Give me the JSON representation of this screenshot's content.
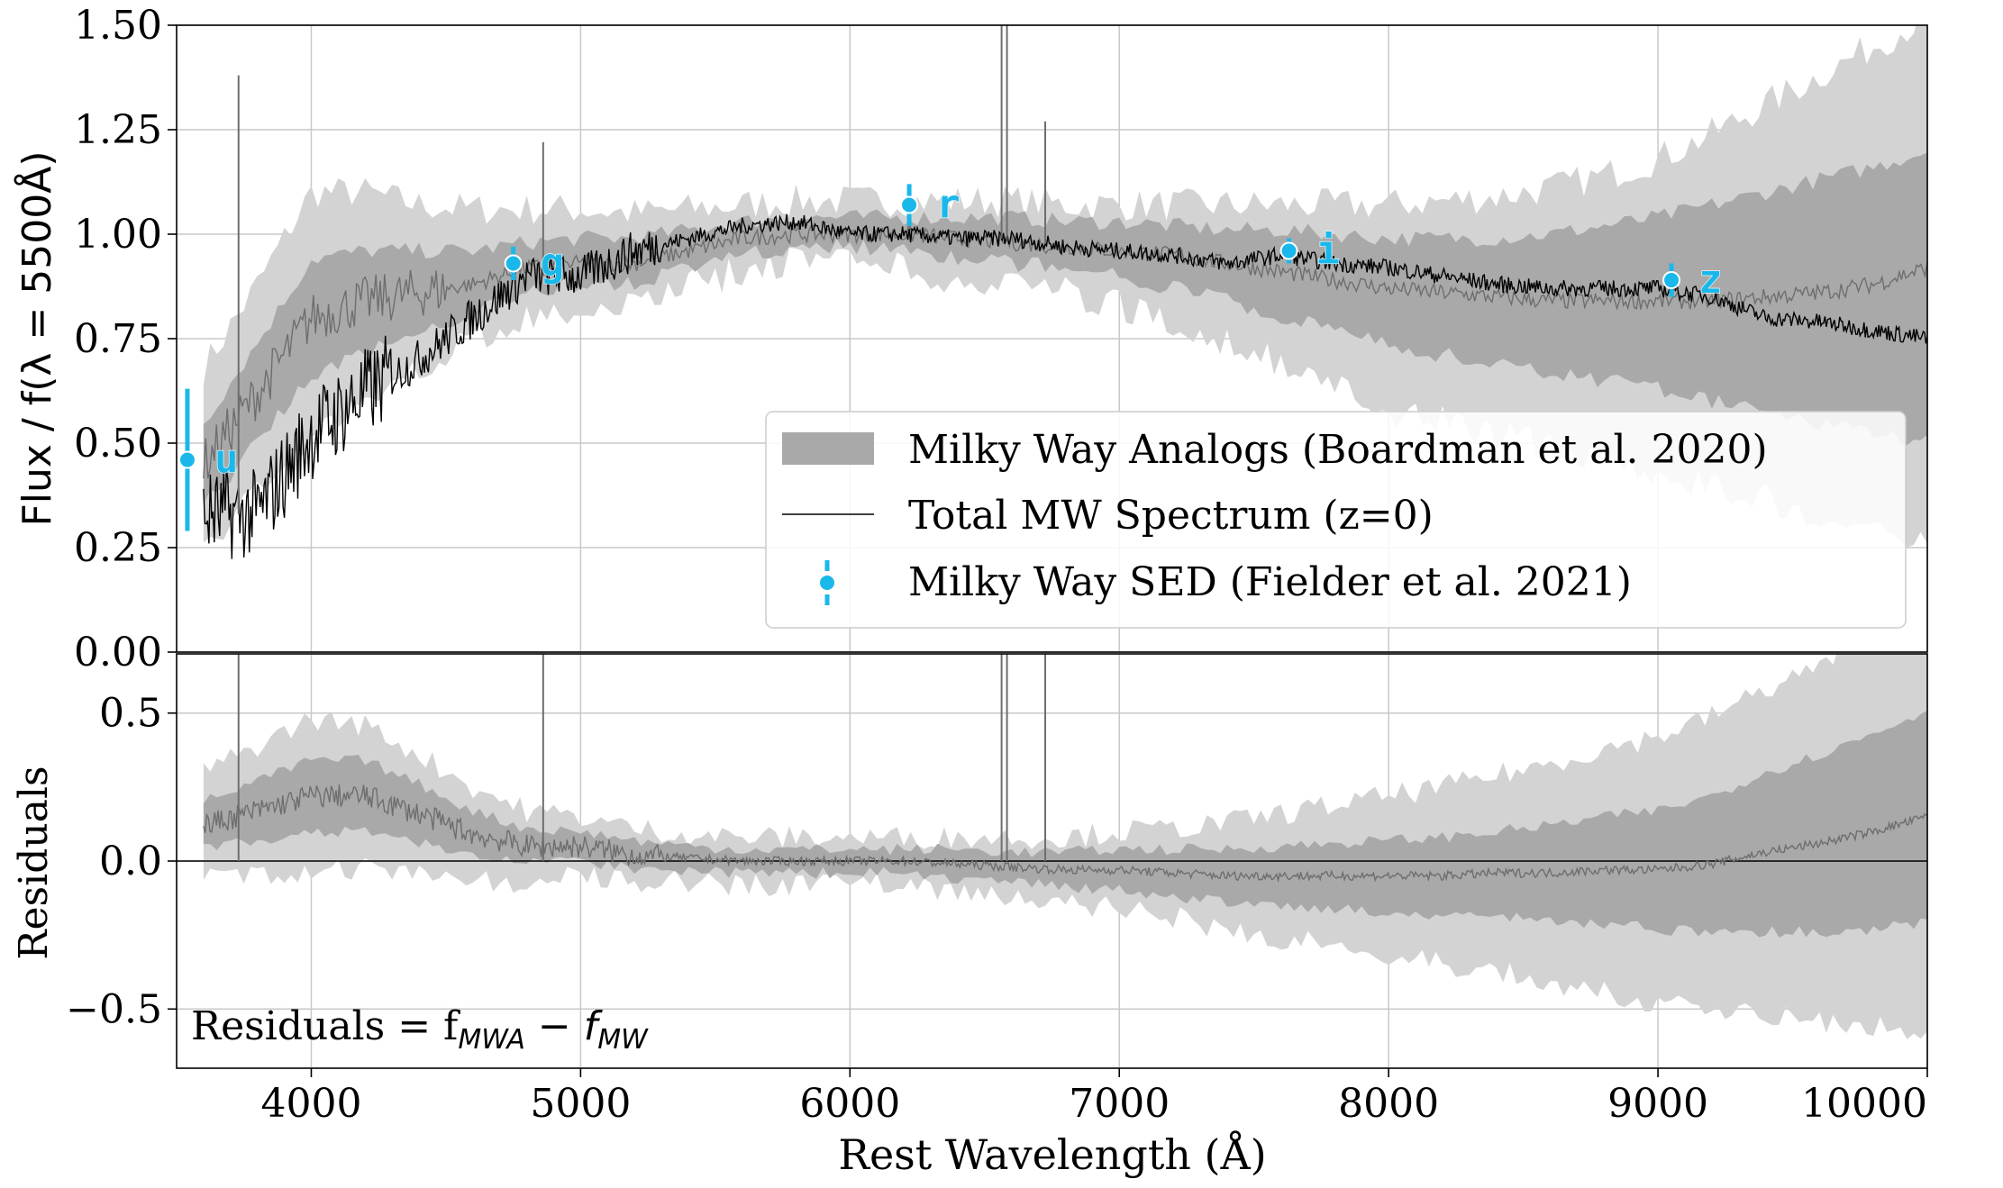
{
  "colors": {
    "sed": "#1ab8ea",
    "band_outer": "#d3d3d3",
    "band_inner": "#a9a9a9",
    "median": "#6e6e6e",
    "mw": "#000000",
    "grid": "#c8c8c8"
  },
  "labels": {
    "top_ylabel": "Flux / f(λ = 5500Å)",
    "bottom_ylabel": "Residuals",
    "xlabel": "Rest Wavelength (Å)",
    "residual_note": "Residuals  = f",
    "residual_note_sub1": "MWA",
    "residual_note_mid": " − f",
    "residual_note_sub2": "MW"
  },
  "legend": {
    "items": [
      {
        "label": "Milky Way Analogs (Boardman et al. 2020)",
        "kind": "patch"
      },
      {
        "label": "Total MW Spectrum (z=0)",
        "kind": "line"
      },
      {
        "label": "Milky Way SED (Fielder et al. 2021)",
        "kind": "errorbar"
      }
    ]
  },
  "chart_data": [
    {
      "type": "line",
      "panel": "top",
      "xlim": [
        3500,
        10000
      ],
      "ylim": [
        0.0,
        1.5
      ],
      "xticks": [
        4000,
        5000,
        6000,
        7000,
        8000,
        9000,
        10000
      ],
      "yticks": [
        "0.00",
        "0.25",
        "0.50",
        "0.75",
        "1.00",
        "1.25",
        "1.50"
      ],
      "ytick_values": [
        0,
        0.25,
        0.5,
        0.75,
        1.0,
        1.25,
        1.5
      ],
      "grid": true,
      "legend_position": "lower-right",
      "analog_band": {
        "x": [
          3600,
          3800,
          4000,
          4200,
          4400,
          4600,
          4800,
          5000,
          5200,
          5400,
          5600,
          5800,
          6000,
          6200,
          6400,
          6600,
          6800,
          7000,
          7200,
          7400,
          7600,
          7800,
          8000,
          8200,
          8400,
          8600,
          8800,
          9000,
          9200,
          9400,
          9600,
          9800,
          10000
        ],
        "median": [
          0.45,
          0.62,
          0.8,
          0.84,
          0.86,
          0.88,
          0.92,
          0.93,
          0.93,
          0.96,
          0.99,
          1.0,
          1.0,
          1.0,
          0.99,
          0.98,
          0.97,
          0.96,
          0.95,
          0.93,
          0.91,
          0.89,
          0.87,
          0.86,
          0.85,
          0.84,
          0.84,
          0.84,
          0.84,
          0.85,
          0.86,
          0.88,
          0.92
        ],
        "inner_lo": [
          0.35,
          0.5,
          0.66,
          0.72,
          0.77,
          0.81,
          0.86,
          0.88,
          0.88,
          0.92,
          0.95,
          0.97,
          0.97,
          0.96,
          0.94,
          0.93,
          0.92,
          0.9,
          0.87,
          0.84,
          0.8,
          0.77,
          0.73,
          0.71,
          0.69,
          0.67,
          0.65,
          0.63,
          0.6,
          0.57,
          0.55,
          0.52,
          0.5
        ],
        "inner_hi": [
          0.55,
          0.74,
          0.94,
          0.96,
          0.96,
          0.96,
          0.98,
          0.99,
          0.99,
          1.01,
          1.03,
          1.04,
          1.04,
          1.04,
          1.04,
          1.04,
          1.03,
          1.03,
          1.02,
          1.01,
          1.01,
          1.0,
          0.99,
          0.99,
          0.99,
          1.0,
          1.02,
          1.04,
          1.07,
          1.1,
          1.13,
          1.16,
          1.2
        ],
        "outer_lo": [
          0.25,
          0.38,
          0.52,
          0.6,
          0.68,
          0.74,
          0.8,
          0.83,
          0.84,
          0.88,
          0.91,
          0.93,
          0.93,
          0.92,
          0.89,
          0.87,
          0.86,
          0.83,
          0.79,
          0.74,
          0.69,
          0.63,
          0.58,
          0.55,
          0.52,
          0.49,
          0.46,
          0.43,
          0.4,
          0.37,
          0.33,
          0.3,
          0.28
        ],
        "outer_hi": [
          0.68,
          0.88,
          1.1,
          1.1,
          1.07,
          1.06,
          1.06,
          1.06,
          1.05,
          1.06,
          1.07,
          1.08,
          1.08,
          1.08,
          1.08,
          1.08,
          1.07,
          1.07,
          1.07,
          1.07,
          1.07,
          1.07,
          1.07,
          1.08,
          1.09,
          1.11,
          1.14,
          1.18,
          1.24,
          1.31,
          1.38,
          1.45,
          1.52
        ]
      },
      "mw_spectrum": {
        "x": [
          3600,
          3800,
          4000,
          4200,
          4400,
          4600,
          4800,
          5000,
          5200,
          5400,
          5600,
          5800,
          6000,
          6200,
          6400,
          6600,
          6800,
          7000,
          7200,
          7400,
          7600,
          7800,
          8000,
          8200,
          8400,
          8600,
          8800,
          9000,
          9200,
          9400,
          9600,
          9800,
          10000
        ],
        "y": [
          0.33,
          0.33,
          0.52,
          0.62,
          0.7,
          0.8,
          0.9,
          0.9,
          0.96,
          0.99,
          1.02,
          1.03,
          1.0,
          1.0,
          0.99,
          0.99,
          0.97,
          0.96,
          0.95,
          0.93,
          0.95,
          0.93,
          0.92,
          0.9,
          0.88,
          0.87,
          0.87,
          0.87,
          0.85,
          0.8,
          0.79,
          0.77,
          0.75
        ]
      },
      "sed_points": [
        {
          "band": "u",
          "x": 3540,
          "y": 0.46,
          "yerr": 0.17
        },
        {
          "band": "g",
          "x": 4750,
          "y": 0.93,
          "yerr": 0.04
        },
        {
          "band": "r",
          "x": 6220,
          "y": 1.07,
          "yerr": 0.05
        },
        {
          "band": "i",
          "x": 7630,
          "y": 0.96,
          "yerr": 0.03
        },
        {
          "band": "z",
          "x": 9050,
          "y": 0.89,
          "yerr": 0.04
        }
      ],
      "emission_features": [
        {
          "x": 3730,
          "y": 1.38
        },
        {
          "x": 4861,
          "y": 1.22
        },
        {
          "x": 6563,
          "y": 1.5
        },
        {
          "x": 6583,
          "y": 1.5
        },
        {
          "x": 6725,
          "y": 1.27
        }
      ]
    },
    {
      "type": "line",
      "panel": "bottom",
      "xlim": [
        3500,
        10000
      ],
      "ylim": [
        -0.7,
        0.7
      ],
      "xticks": [
        4000,
        5000,
        6000,
        7000,
        8000,
        9000,
        10000
      ],
      "yticks": [
        "0.5",
        "0.0",
        "−0.5"
      ],
      "ytick_values": [
        0.5,
        0.0,
        -0.5
      ],
      "grid": true,
      "zero_line": true,
      "residual_median": {
        "x": [
          3600,
          3800,
          4000,
          4200,
          4400,
          4600,
          4800,
          5000,
          5200,
          5400,
          5600,
          5800,
          6000,
          6200,
          6400,
          6600,
          6800,
          7000,
          7200,
          7400,
          7600,
          7800,
          8000,
          8200,
          8400,
          8600,
          8800,
          9000,
          9200,
          9400,
          9600,
          9800,
          10000
        ],
        "y": [
          0.12,
          0.17,
          0.22,
          0.22,
          0.16,
          0.09,
          0.05,
          0.05,
          0.02,
          0.01,
          0.0,
          0.0,
          0.0,
          0.0,
          -0.01,
          -0.02,
          -0.03,
          -0.03,
          -0.04,
          -0.05,
          -0.05,
          -0.05,
          -0.05,
          -0.05,
          -0.04,
          -0.04,
          -0.03,
          -0.03,
          -0.01,
          0.03,
          0.06,
          0.1,
          0.15
        ]
      },
      "residual_inner_halfwidth": [
        0.08,
        0.1,
        0.12,
        0.12,
        0.1,
        0.08,
        0.06,
        0.05,
        0.05,
        0.04,
        0.04,
        0.04,
        0.04,
        0.04,
        0.05,
        0.05,
        0.06,
        0.07,
        0.08,
        0.09,
        0.1,
        0.11,
        0.12,
        0.13,
        0.14,
        0.16,
        0.18,
        0.2,
        0.23,
        0.27,
        0.3,
        0.33,
        0.36
      ],
      "residual_outer_halfwidth": [
        0.18,
        0.22,
        0.26,
        0.24,
        0.2,
        0.16,
        0.12,
        0.1,
        0.09,
        0.08,
        0.08,
        0.08,
        0.08,
        0.08,
        0.09,
        0.1,
        0.11,
        0.13,
        0.15,
        0.18,
        0.21,
        0.24,
        0.27,
        0.3,
        0.33,
        0.37,
        0.41,
        0.45,
        0.5,
        0.55,
        0.6,
        0.66,
        0.72
      ]
    }
  ]
}
